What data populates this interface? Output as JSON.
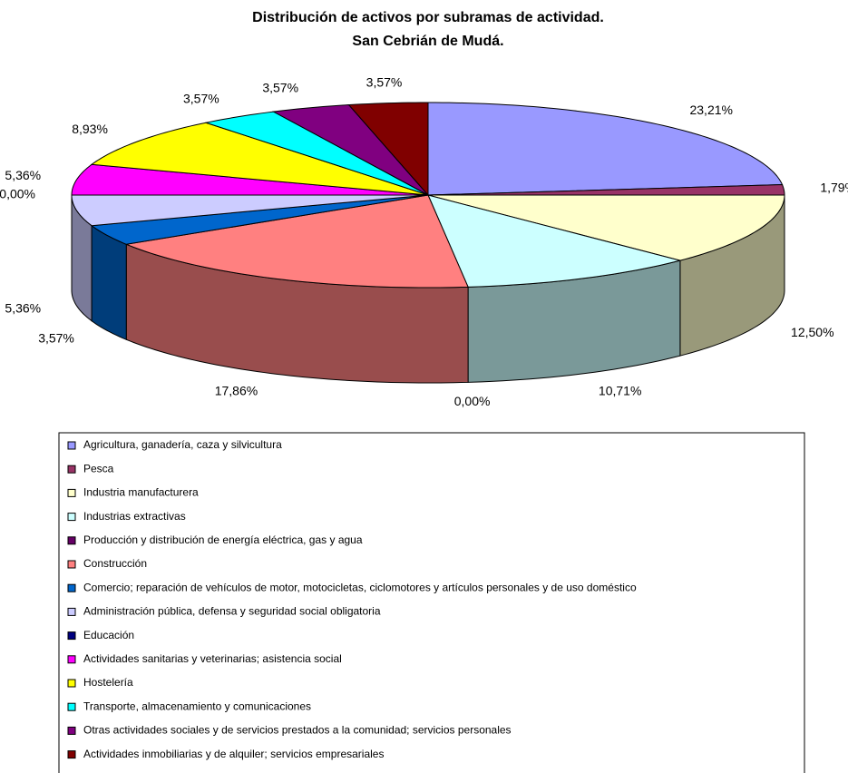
{
  "chart_data": {
    "type": "pie",
    "title": "Distribución de activos por subramas de actividad.",
    "subtitle": "San Cebrián de Mudá.",
    "categories": [
      "Agricultura, ganadería, caza y silvicultura",
      "Pesca",
      "Industria manufacturera",
      "Industrias extractivas",
      "Producción y distribución de energía eléctrica, gas y agua",
      "Construcción",
      "Comercio; reparación de vehículos de motor, motocicletas, ciclomotores y artículos personales y de uso doméstico",
      "Administración pública, defensa y seguridad social obligatoria",
      "Educación",
      "Actividades sanitarias y veterinarias; asistencia social",
      "Hostelería",
      "Transporte, almacenamiento y comunicaciones",
      "Otras actividades sociales y de servicios prestados a la comunidad; servicios personales",
      "Actividades inmobiliarias y de alquiler; servicios empresariales"
    ],
    "values": [
      23.21,
      1.79,
      12.5,
      10.71,
      0,
      17.86,
      3.57,
      5.36,
      0,
      5.36,
      8.93,
      3.57,
      3.57,
      3.57
    ],
    "value_labels": [
      "23,21%",
      "1,79%",
      "12,50%",
      "10,71%",
      "0,00%",
      "17,86%",
      "3,57%",
      "5,36%",
      "0,00%",
      "5,36%",
      "8,93%",
      "3,57%",
      "3,57%",
      "3,57%"
    ],
    "colors": [
      "#9999ff",
      "#993366",
      "#ffffcc",
      "#ccffff",
      "#660066",
      "#ff8080",
      "#0066cc",
      "#ccccff",
      "#000080",
      "#ff00ff",
      "#ffff00",
      "#00ffff",
      "#800080",
      "#800000"
    ],
    "legend": "bottom"
  }
}
